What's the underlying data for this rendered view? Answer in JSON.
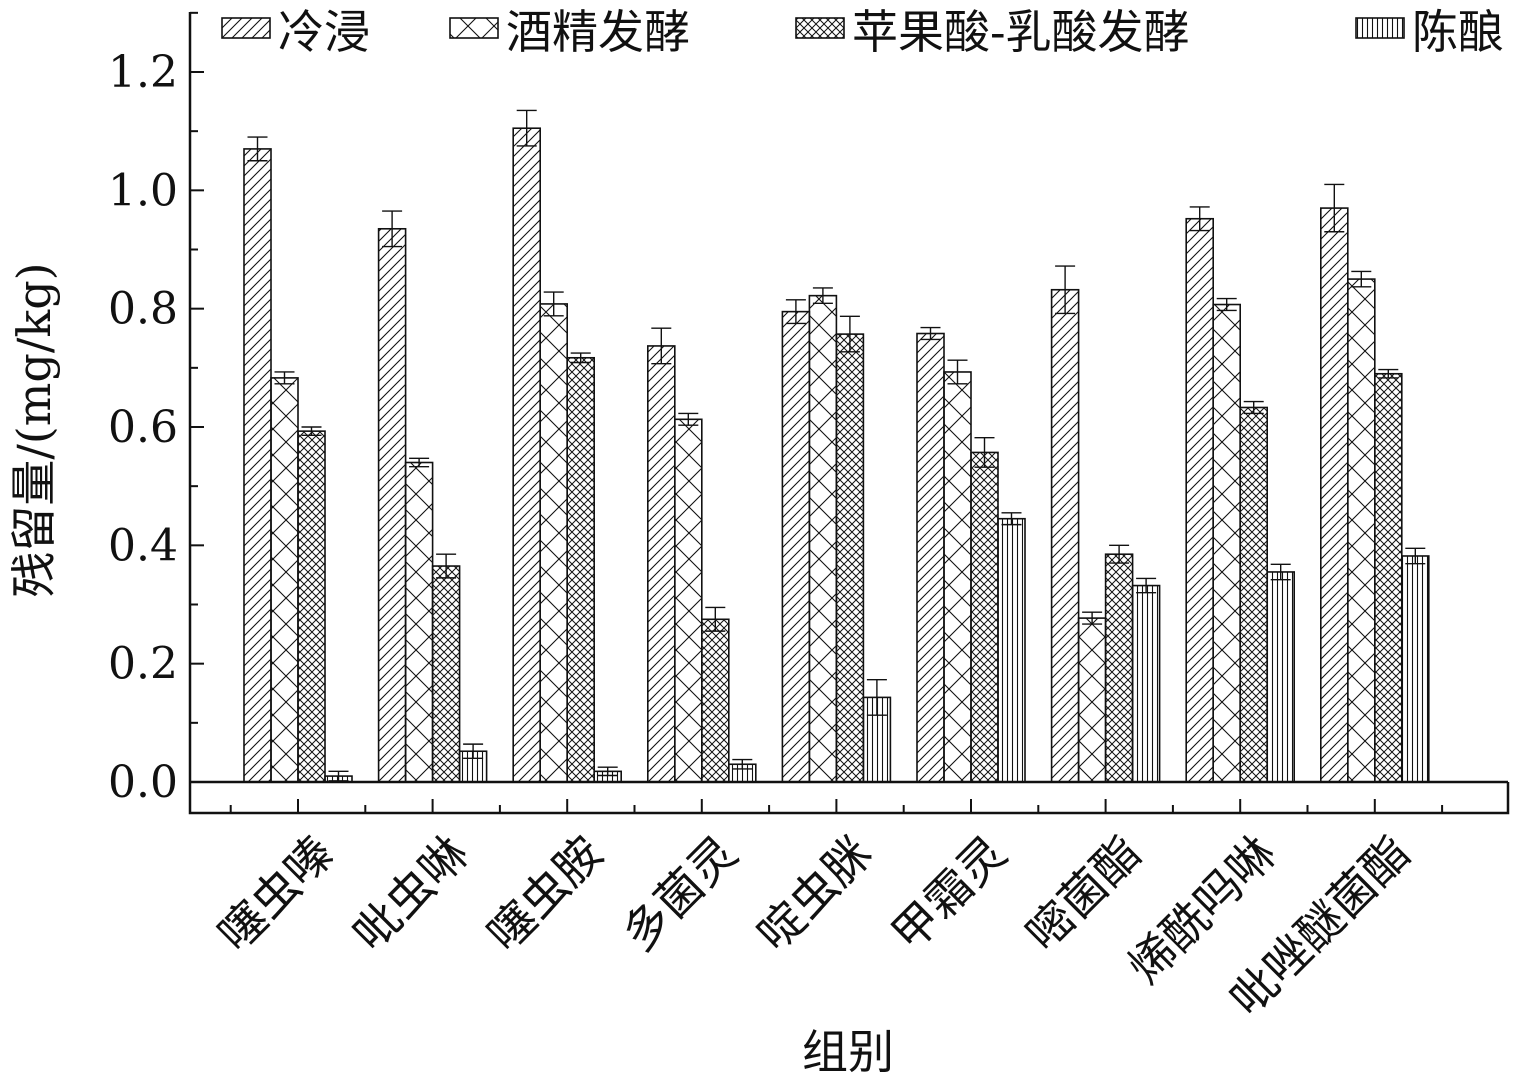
{
  "chart_data": {
    "type": "bar",
    "xlabel": "组别",
    "ylabel": "残留量/(mg/kg)",
    "ylim": [
      -0.05,
      1.3
    ],
    "yticks": [
      0.0,
      0.2,
      0.4,
      0.6,
      0.8,
      1.0,
      1.2
    ],
    "ytick_labels": [
      "0.0",
      "0.2",
      "0.4",
      "0.6",
      "0.8",
      "1.0",
      "1.2"
    ],
    "categories": [
      "噻虫嗪",
      "吡虫啉",
      "噻虫胺",
      "多菌灵",
      "啶虫脒",
      "甲霜灵",
      "嘧菌酯",
      "烯酰吗啉",
      "吡唑醚菌酯"
    ],
    "legend_position": "top",
    "grid": false,
    "series": [
      {
        "name": "冷浸",
        "pattern": "diagonal",
        "values": [
          1.07,
          0.935,
          1.105,
          0.737,
          0.795,
          0.758,
          0.832,
          0.952,
          0.97
        ],
        "errors": [
          0.02,
          0.03,
          0.03,
          0.03,
          0.02,
          0.01,
          0.04,
          0.02,
          0.04
        ]
      },
      {
        "name": "酒精发酵",
        "pattern": "crosshatch",
        "values": [
          0.683,
          0.54,
          0.808,
          0.613,
          0.822,
          0.693,
          0.277,
          0.807,
          0.85
        ],
        "errors": [
          0.01,
          0.007,
          0.02,
          0.01,
          0.013,
          0.02,
          0.01,
          0.01,
          0.013
        ]
      },
      {
        "name": "苹果酸-乳酸发酵",
        "pattern": "dense-crosshatch",
        "values": [
          0.593,
          0.365,
          0.717,
          0.275,
          0.757,
          0.557,
          0.385,
          0.633,
          0.69
        ],
        "errors": [
          0.007,
          0.02,
          0.008,
          0.02,
          0.03,
          0.025,
          0.015,
          0.01,
          0.007
        ]
      },
      {
        "name": "陈酿",
        "pattern": "vertical",
        "values": [
          0.01,
          0.052,
          0.018,
          0.03,
          0.143,
          0.445,
          0.332,
          0.355,
          0.382
        ],
        "errors": [
          0.008,
          0.012,
          0.007,
          0.008,
          0.03,
          0.01,
          0.012,
          0.013,
          0.013
        ]
      }
    ]
  }
}
